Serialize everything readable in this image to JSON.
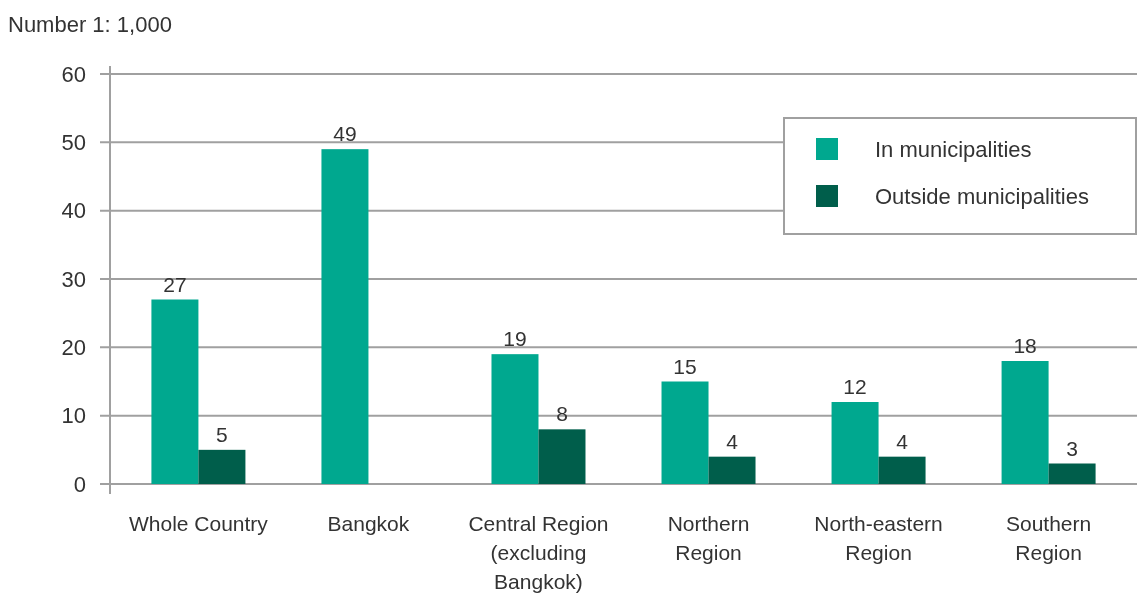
{
  "chart_data": {
    "type": "bar",
    "ylabel": "Number 1: 1,000",
    "categories": [
      "Whole Country",
      "Bangkok",
      "Central Region (excluding Bangkok)",
      "Northern Region",
      "North-eastern Region",
      "Southern Region"
    ],
    "series": [
      {
        "name": "In municipalities",
        "color": "#00a88f",
        "values": [
          27,
          49,
          19,
          15,
          12,
          18
        ]
      },
      {
        "name": "Outside municipalities",
        "color": "#005e4b",
        "values": [
          5,
          null,
          8,
          4,
          4,
          3
        ]
      }
    ],
    "ylim": [
      0,
      60
    ],
    "yticks": [
      0,
      10,
      20,
      30,
      40,
      50,
      60
    ],
    "grid": "y",
    "legend": "top right",
    "data_labels": true
  }
}
